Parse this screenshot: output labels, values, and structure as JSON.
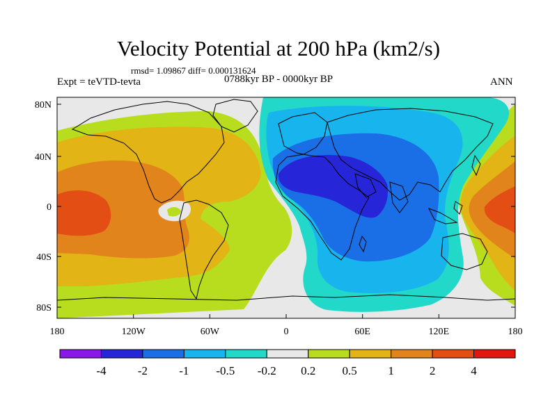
{
  "title": "Velocity Potential at 200 hPa (km2/s)",
  "rmsd_line": "rmsd= 1.09867 diff= 0.000131624",
  "expt_label": "Expt = teVTD-tevta",
  "period_label": "0788kyr BP - 0000kyr BP",
  "season_label": "ANN",
  "lat_ticks": [
    "80N",
    "40N",
    "0",
    "40S",
    "80S"
  ],
  "lon_ticks": [
    "180",
    "120W",
    "60W",
    "0",
    "60E",
    "120E",
    "180"
  ],
  "colorbar": {
    "labels": [
      "-4",
      "-2",
      "-1",
      "-0.5",
      "-0.2",
      "0.2",
      "0.5",
      "1",
      "2",
      "4"
    ],
    "colors": [
      "#8a18e8",
      "#2626d8",
      "#1a6ee6",
      "#18b4ee",
      "#22d8c8",
      "#e8e8e8",
      "#b8dc1e",
      "#e2b416",
      "#e2841c",
      "#e24e14",
      "#e2160e"
    ]
  }
}
